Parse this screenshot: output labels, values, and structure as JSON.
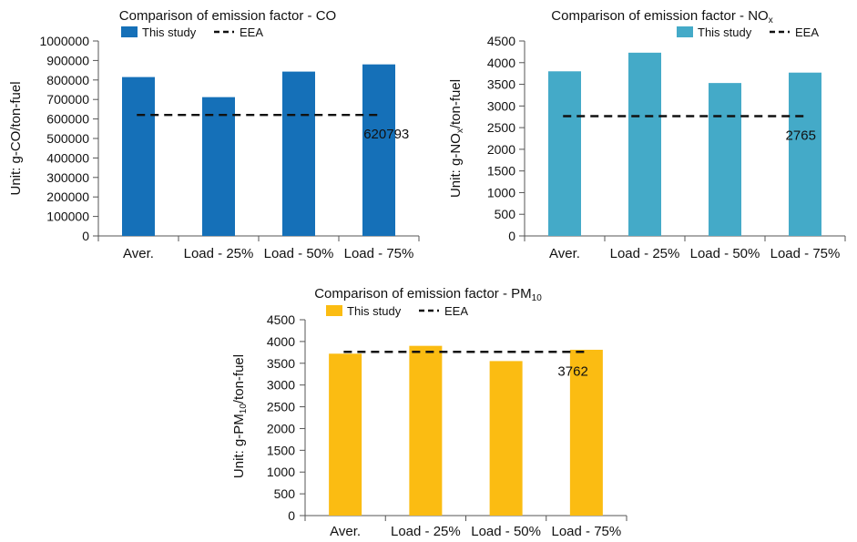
{
  "chart_data": [
    {
      "type": "bar",
      "title_main": "Comparison of emission factor - CO",
      "title_sub": "",
      "ylabel_main": "Unit: g-CO/ton-fuel",
      "ylabel_sub": "",
      "ylabel_tail": "",
      "categories": [
        "Aver.",
        "Load - 25%",
        "Load - 50%",
        "Load - 75%"
      ],
      "ylim": [
        0,
        1000000
      ],
      "yticks": [
        0,
        100000,
        200000,
        300000,
        400000,
        500000,
        600000,
        700000,
        800000,
        900000,
        1000000
      ],
      "series": [
        {
          "name": "This study",
          "color": "#1570b8",
          "values": [
            815000,
            712000,
            843000,
            880000
          ]
        }
      ],
      "reference": {
        "name": "EEA",
        "value": 620793,
        "label": "620793"
      },
      "grid": false,
      "legend": "top"
    },
    {
      "type": "bar",
      "title_main": "Comparison of emission factor - NO",
      "title_sub": "x",
      "ylabel_main": "Unit: g-NO",
      "ylabel_sub": "x",
      "ylabel_tail": "/ton-fuel",
      "categories": [
        "Aver.",
        "Load - 25%",
        "Load - 50%",
        "Load - 75%"
      ],
      "ylim": [
        0,
        4500
      ],
      "yticks": [
        0,
        500,
        1000,
        1500,
        2000,
        2500,
        3000,
        3500,
        4000,
        4500
      ],
      "series": [
        {
          "name": "This study",
          "color": "#44aac8",
          "values": [
            3800,
            4230,
            3530,
            3770
          ]
        }
      ],
      "reference": {
        "name": "EEA",
        "value": 2765,
        "label": "2765"
      },
      "grid": false,
      "legend": "top"
    },
    {
      "type": "bar",
      "title_main": "Comparison of emission factor - PM",
      "title_sub": "10",
      "ylabel_main": "Unit: g-PM",
      "ylabel_sub": "10",
      "ylabel_tail": "/ton-fuel",
      "categories": [
        "Aver.",
        "Load - 25%",
        "Load - 50%",
        "Load - 75%"
      ],
      "ylim": [
        0,
        4500
      ],
      "yticks": [
        0,
        500,
        1000,
        1500,
        2000,
        2500,
        3000,
        3500,
        4000,
        4500
      ],
      "series": [
        {
          "name": "This study",
          "color": "#fbbc12",
          "values": [
            3720,
            3900,
            3550,
            3810
          ]
        }
      ],
      "reference": {
        "name": "EEA",
        "value": 3762,
        "label": "3762"
      },
      "grid": false,
      "legend": "top"
    }
  ]
}
